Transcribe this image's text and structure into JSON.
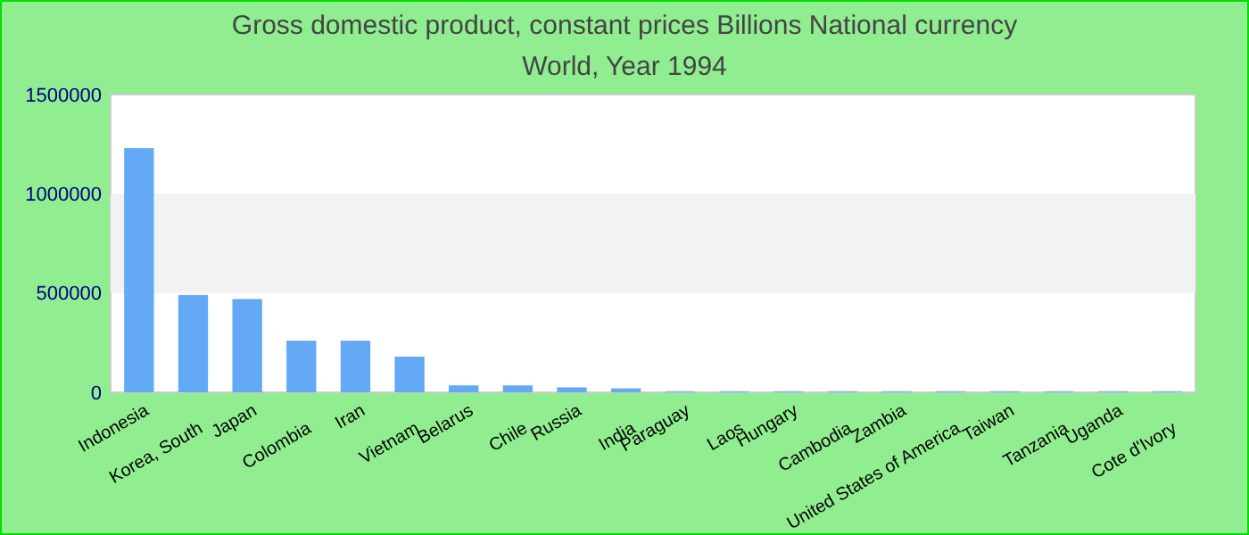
{
  "chart_data": {
    "type": "bar",
    "title": "Gross domestic product, constant prices Billions National currency",
    "subtitle": "World, Year 1994",
    "categories": [
      "Indonesia",
      "Korea, South",
      "Japan",
      "Colombia",
      "Iran",
      "Vietnam",
      "Belarus",
      "Chile",
      "Russia",
      "India",
      "Paraguay",
      "Laos",
      "Hungary",
      "Cambodia",
      "Zambia",
      "United States of America",
      "Taiwan",
      "Tanzania",
      "Uganda",
      "Cote d'Ivory"
    ],
    "values": [
      1230000,
      490000,
      470000,
      260000,
      260000,
      180000,
      35000,
      35000,
      25000,
      20000,
      5000,
      5000,
      5000,
      5000,
      5000,
      5000,
      5000,
      5000,
      5000,
      5000
    ],
    "color": "#63a9f5",
    "ylim": [
      0,
      1500000
    ],
    "yticks": [
      0,
      500000,
      1000000,
      1500000
    ],
    "bands": [
      {
        "axis": "y",
        "from": 500000,
        "to": 1000000,
        "color": "#f2f2f2"
      }
    ]
  }
}
